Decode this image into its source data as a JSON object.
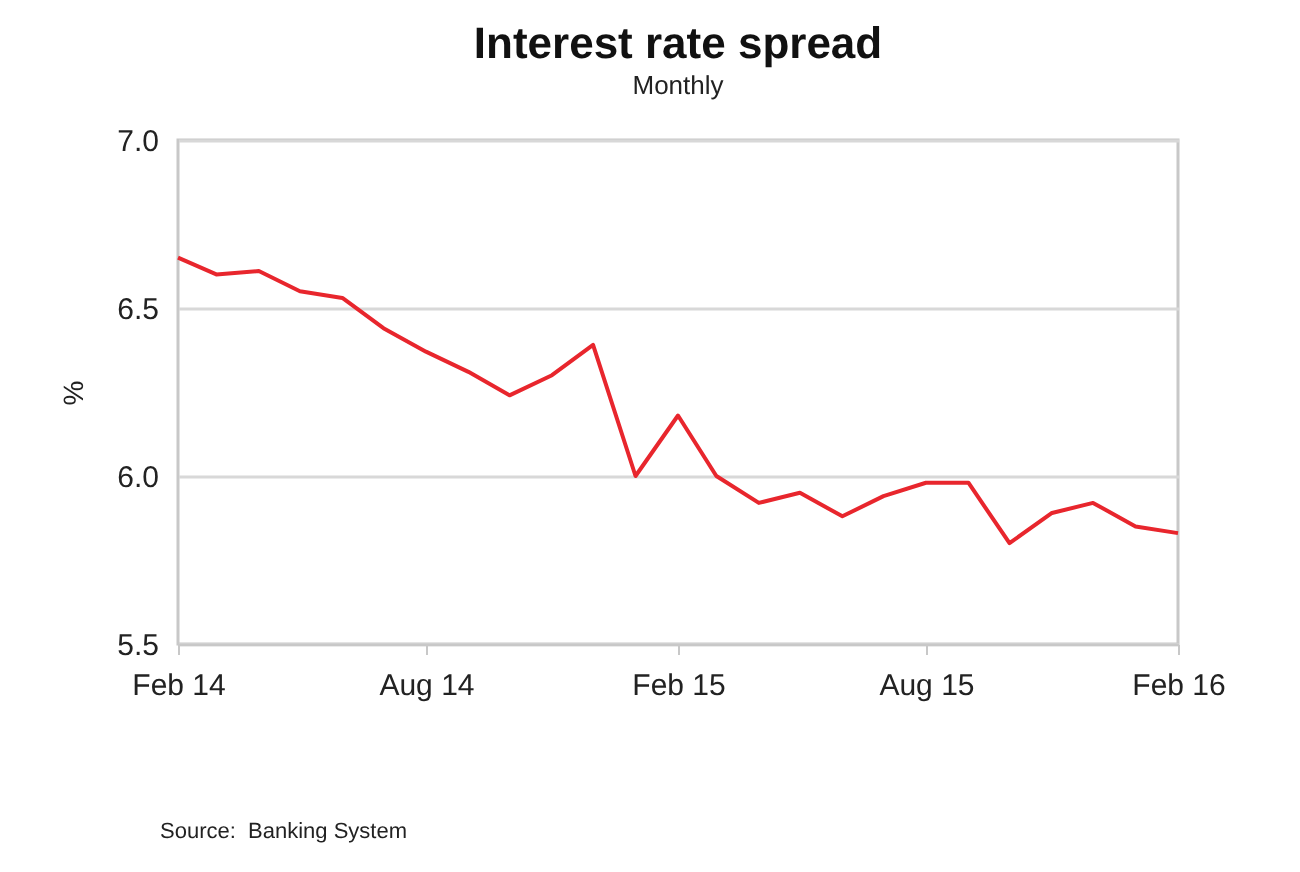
{
  "chart_data": {
    "type": "line",
    "title": "Interest rate spread",
    "subtitle": "Monthly",
    "ylabel": "%",
    "annotations": [
      "Source:  Banking System"
    ],
    "x": [
      "2014-02",
      "2014-03",
      "2014-04",
      "2014-05",
      "2014-06",
      "2014-07",
      "2014-08",
      "2014-09",
      "2014-10",
      "2014-11",
      "2014-12",
      "2015-01",
      "2015-02",
      "2015-03",
      "2015-04",
      "2015-05",
      "2015-06",
      "2015-07",
      "2015-08",
      "2015-09",
      "2015-10",
      "2015-11",
      "2015-12",
      "2016-01",
      "2016-02"
    ],
    "series": [
      {
        "color": "#e8262d",
        "values": [
          6.65,
          6.6,
          6.61,
          6.55,
          6.53,
          6.44,
          6.37,
          6.31,
          6.24,
          6.3,
          6.39,
          6.0,
          6.18,
          6.0,
          5.92,
          5.95,
          5.88,
          5.94,
          5.98,
          5.98,
          5.8,
          5.89,
          5.92,
          5.85,
          5.83
        ]
      }
    ],
    "xlim": [
      "2014-02",
      "2016-02"
    ],
    "xticks": [
      {
        "value": "2014-02",
        "label": "Feb 14"
      },
      {
        "value": "2014-08",
        "label": "Aug 14"
      },
      {
        "value": "2015-02",
        "label": "Feb 15"
      },
      {
        "value": "2015-08",
        "label": "Aug 15"
      },
      {
        "value": "2016-02",
        "label": "Feb 16"
      }
    ],
    "ylim": [
      5.5,
      7.0
    ],
    "yticks": [
      {
        "value": 5.5,
        "label": "5.5"
      },
      {
        "value": 6.0,
        "label": "6.0"
      },
      {
        "value": 6.5,
        "label": "6.5"
      },
      {
        "value": 7.0,
        "label": "7.0"
      }
    ],
    "grid": "y",
    "legend": false,
    "marker": "none",
    "line_style": "solid"
  }
}
